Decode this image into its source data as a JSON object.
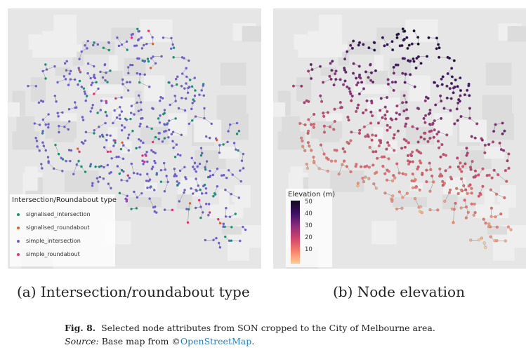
{
  "panel_a": {
    "legend_title": "Intersection/Roundabout type",
    "legend_items": [
      {
        "label": "signalised_intersection",
        "color": "#1b8f74"
      },
      {
        "label": "signalised_roundabout",
        "color": "#e0602a"
      },
      {
        "label": "simple_intersection",
        "color": "#6e5fc9"
      },
      {
        "label": "simple_roundabout",
        "color": "#e0307e"
      }
    ],
    "sublabel": "(a) Intersection/roundabout type"
  },
  "panel_b": {
    "legend_title": "Elevation (m)",
    "ticks": [
      "50",
      "40",
      "30",
      "20",
      "10"
    ],
    "sublabel": "(b) Node elevation"
  },
  "caption": {
    "fig_label": "Fig. 8.",
    "text": "Selected node attributes from SON cropped to the City of Melbourne area.",
    "source_label": "Source:",
    "source_text": "Base map from ©",
    "link_text": "OpenStreetMap",
    "end": "."
  },
  "colors": {
    "map_background": "#e4e4e4",
    "edge": "#888888"
  }
}
